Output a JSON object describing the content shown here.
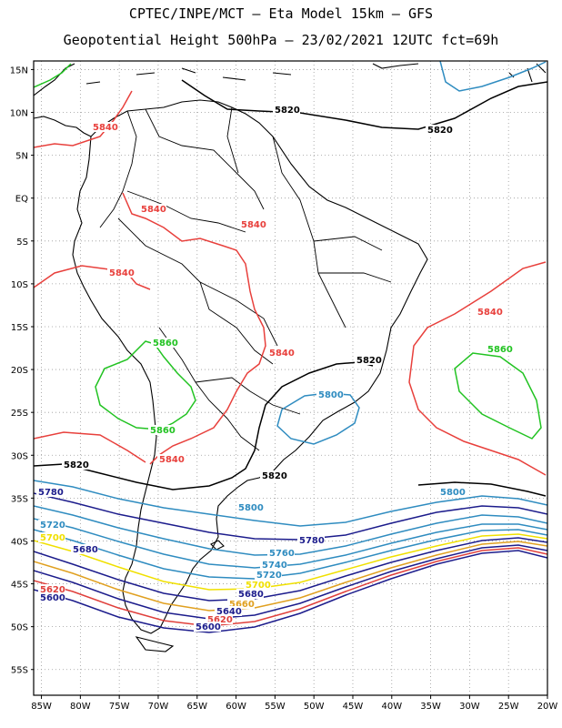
{
  "header": {
    "line1": "CPTEC/INPE/MCT –  Eta Model 15km – GFS",
    "line2": "Geopotential Height 500hPa – 23/02/2021 12UTC fct=69h"
  },
  "axes": {
    "lat_labels": [
      "15N",
      "10N",
      "5N",
      "EQ",
      "5S",
      "10S",
      "15S",
      "20S",
      "25S",
      "30S",
      "35S",
      "40S",
      "45S",
      "50S",
      "55S"
    ],
    "lon_labels": [
      "85W",
      "80W",
      "75W",
      "70W",
      "65W",
      "60W",
      "55W",
      "50W",
      "45W",
      "40W",
      "35W",
      "30W",
      "25W",
      "20W"
    ],
    "lat_range": [
      16,
      -58
    ],
    "lon_range": [
      -86,
      -20
    ],
    "grid": "dotted"
  },
  "contour_colors": {
    "5580": "#1c1c8c",
    "5600": "#1c1c8c",
    "5620": "#e0403c",
    "5640": "#1c1c8c",
    "5660": "#e0a020",
    "5680": "#1c1c8c",
    "5700": "#f0e000",
    "5720": "#2f8cc0",
    "5740": "#2f8cc0",
    "5760": "#2f8cc0",
    "5780": "#1c1c8c",
    "5800": "#2f8cc0",
    "5820": "#000000",
    "5840": "#e8403c",
    "5860": "#22c322"
  },
  "contour_labels": [
    {
      "text": "5840",
      "key": "5840"
    },
    {
      "text": "5840",
      "key": "5840"
    },
    {
      "text": "5840",
      "key": "5840"
    },
    {
      "text": "5840",
      "key": "5840"
    },
    {
      "text": "5840",
      "key": "5840"
    },
    {
      "text": "5840",
      "key": "5840"
    },
    {
      "text": "5840",
      "key": "5840"
    },
    {
      "text": "5820",
      "key": "5820"
    },
    {
      "text": "5820",
      "key": "5820"
    },
    {
      "text": "5820",
      "key": "5820"
    },
    {
      "text": "5820",
      "key": "5820"
    },
    {
      "text": "5820",
      "key": "5820"
    },
    {
      "text": "5860",
      "key": "5860"
    },
    {
      "text": "5860",
      "key": "5860"
    },
    {
      "text": "5860",
      "key": "5860"
    },
    {
      "text": "5800",
      "key": "5800"
    },
    {
      "text": "5800",
      "key": "5800"
    },
    {
      "text": "5800",
      "key": "5800"
    },
    {
      "text": "5780",
      "key": "5780"
    },
    {
      "text": "5780",
      "key": "5780"
    },
    {
      "text": "5760",
      "key": "5760"
    },
    {
      "text": "5740",
      "key": "5740"
    },
    {
      "text": "5720",
      "key": "5720"
    },
    {
      "text": "5720",
      "key": "5720"
    },
    {
      "text": "5700",
      "key": "5700"
    },
    {
      "text": "5700",
      "key": "5700"
    },
    {
      "text": "5680",
      "key": "5680"
    },
    {
      "text": "5680",
      "key": "5680"
    },
    {
      "text": "5660",
      "key": "5660"
    },
    {
      "text": "5640",
      "key": "5640"
    },
    {
      "text": "5620",
      "key": "5620"
    },
    {
      "text": "5620",
      "key": "5620"
    },
    {
      "text": "5600",
      "key": "5600"
    },
    {
      "text": "5600",
      "key": "5600"
    }
  ]
}
